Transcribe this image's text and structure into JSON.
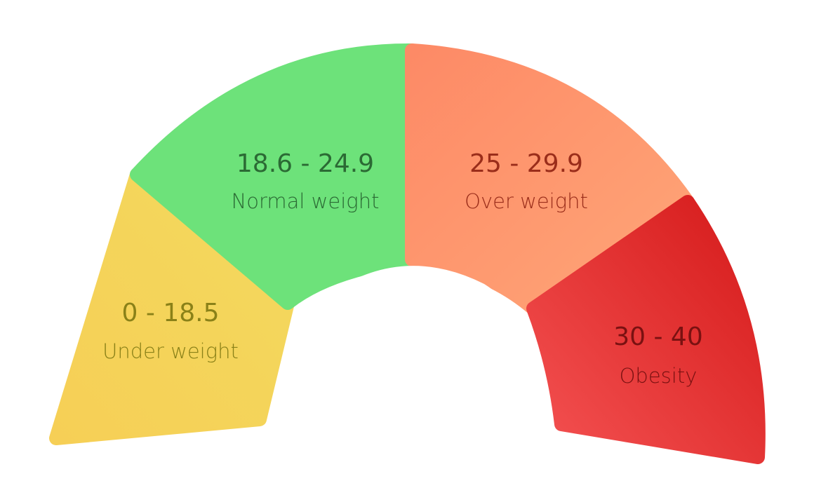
{
  "gauge": {
    "segments": [
      {
        "id": "underweight",
        "range": "0 - 18.5",
        "label": "Under weight",
        "color_start": "#f6cf56",
        "color_end": "#f3d95e",
        "text_color": "#8a8118"
      },
      {
        "id": "normal",
        "range": "18.6 - 24.9",
        "label": "Normal weight",
        "color_start": "#6de27a",
        "color_end": "#6de27a",
        "text_color": "#2b6a34"
      },
      {
        "id": "overweight",
        "range": "25 - 29.9",
        "label": "Over weight",
        "color_start": "#fd8a66",
        "color_end": "#ffa678",
        "text_color": "#9a2d1a"
      },
      {
        "id": "obesity",
        "range": "30 - 40",
        "label": "Obesity",
        "color_start": "#d51a1a",
        "color_end": "#f45252",
        "text_color": "#7a1111"
      }
    ]
  }
}
